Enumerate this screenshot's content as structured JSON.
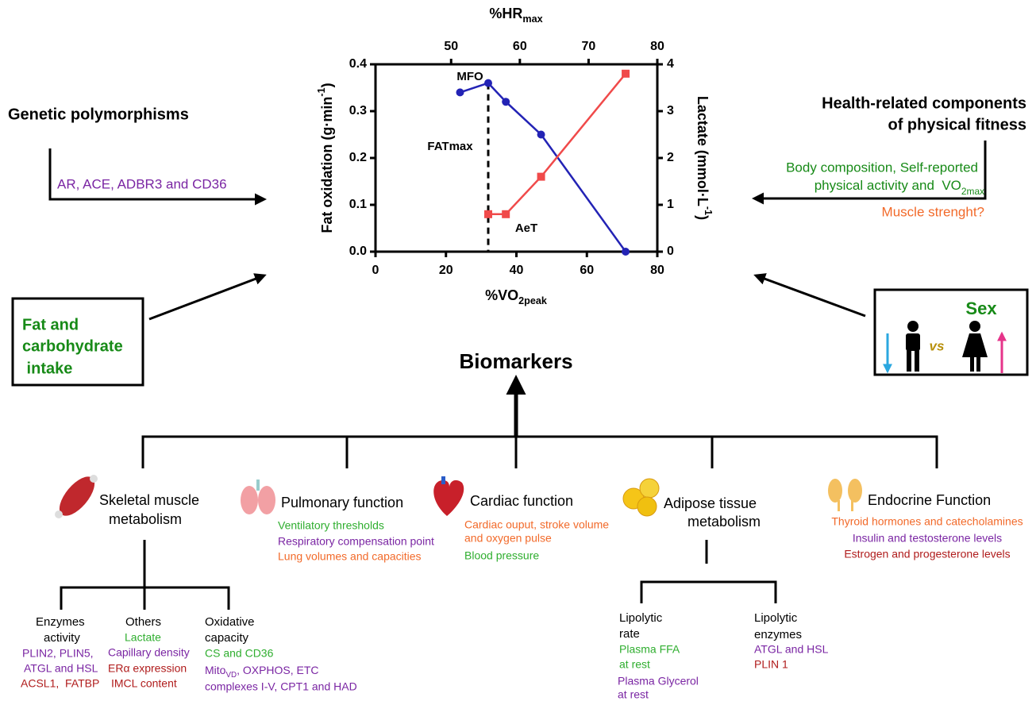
{
  "chart_data": {
    "type": "line",
    "x2label": {
      "text": "%HR",
      "sub": "max"
    },
    "xlabel": {
      "text": "%VO",
      "sub": "2peak"
    },
    "ylabel": {
      "text": "Fat oxidation (g·min",
      "sup": "-1",
      "close": ")"
    },
    "y2label": {
      "text": "Lactate (mmol·L",
      "sup": "-1",
      "close": ")"
    },
    "xlim": [
      0,
      80
    ],
    "xticks": [
      0,
      20,
      40,
      60,
      80
    ],
    "x2lim": [
      39,
      80
    ],
    "x2ticks": [
      50,
      60,
      70,
      80
    ],
    "ylim": [
      0,
      0.4
    ],
    "yticks": [
      {
        "value": 0,
        "label": "0.0"
      },
      0.1,
      0.2,
      0.3,
      0.4
    ],
    "y2lim": [
      0,
      4
    ],
    "y2ticks": [
      0,
      1,
      2,
      3,
      4
    ],
    "series": [
      {
        "color": "#2323b5",
        "x": [
          24,
          32,
          37,
          47,
          71
        ],
        "values": [
          0.34,
          0.36,
          0.32,
          0.25,
          0.0
        ]
      },
      {
        "color": "#f04a4a",
        "axis": "y2",
        "x": [
          32,
          37,
          47,
          71
        ],
        "values": [
          0.8,
          0.8,
          1.6,
          3.8
        ]
      }
    ],
    "annotations": [
      "MFO",
      "FATmax",
      "AeT"
    ]
  },
  "genetic": {
    "title": "Genetic polymorphisms",
    "genes": "AR, ACE, ADBR3 and CD36"
  },
  "intake": [
    "Fat and",
    "carbohydrate",
    " intake"
  ],
  "fitness": {
    "title": [
      "Health-related components",
      "of physical fitness"
    ],
    "body": [
      "Body composition, Self-reported",
      "physical activity and  VO"
    ],
    "body_sub": "2max",
    "strength": "Muscle strenght?"
  },
  "sex": {
    "title": "Sex",
    "vs": "vs"
  },
  "biomarkers": {
    "title": "Biomarkers",
    "branches": [
      {
        "title": [
          "Skeletal muscle",
          "metabolism"
        ],
        "groups": [
          {
            "title": [
              "Enzymes",
              "activity"
            ],
            "items": [
              "PLIN2, PLIN5,",
              "ATGL and HSL",
              "ACSL1,  FATBP"
            ]
          },
          {
            "title": [
              "Others"
            ],
            "items": [
              "Lactate",
              "Capillary density",
              "ERα expression",
              "IMCL content"
            ]
          },
          {
            "title": [
              "Oxidative",
              "capacity"
            ],
            "items": [
              "CS and CD36",
              [
                "Mito",
                "VD",
                ", OXPHOS, ETC"
              ],
              "complexes I-V, CPT1 and HAD"
            ]
          }
        ]
      },
      {
        "title": [
          "Pulmonary function"
        ],
        "items": [
          "Ventilatory thresholds",
          "Respiratory compensation point",
          "Lung volumes and capacities"
        ]
      },
      {
        "title": [
          "Cardiac function"
        ],
        "items": [
          "Cardiac ouput, stroke volume",
          "and oxygen pulse",
          "Blood pressure"
        ]
      },
      {
        "title": [
          "Adipose tissue",
          "metabolism"
        ],
        "groups": [
          {
            "title": [
              "Lipolytic",
              "rate"
            ],
            "items": [
              "Plasma FFA",
              "at rest",
              "Plasma Glycerol",
              "at rest"
            ]
          },
          {
            "title": [
              "Lipolytic",
              "enzymes"
            ],
            "items": [
              "ATGL and HSL",
              "PLIN 1"
            ]
          }
        ]
      },
      {
        "title": [
          "Endocrine Function"
        ],
        "items": [
          "Thyroid hormones and catecholamines",
          "Insulin and testosterone levels",
          "Estrogen and progesterone levels"
        ]
      }
    ]
  }
}
